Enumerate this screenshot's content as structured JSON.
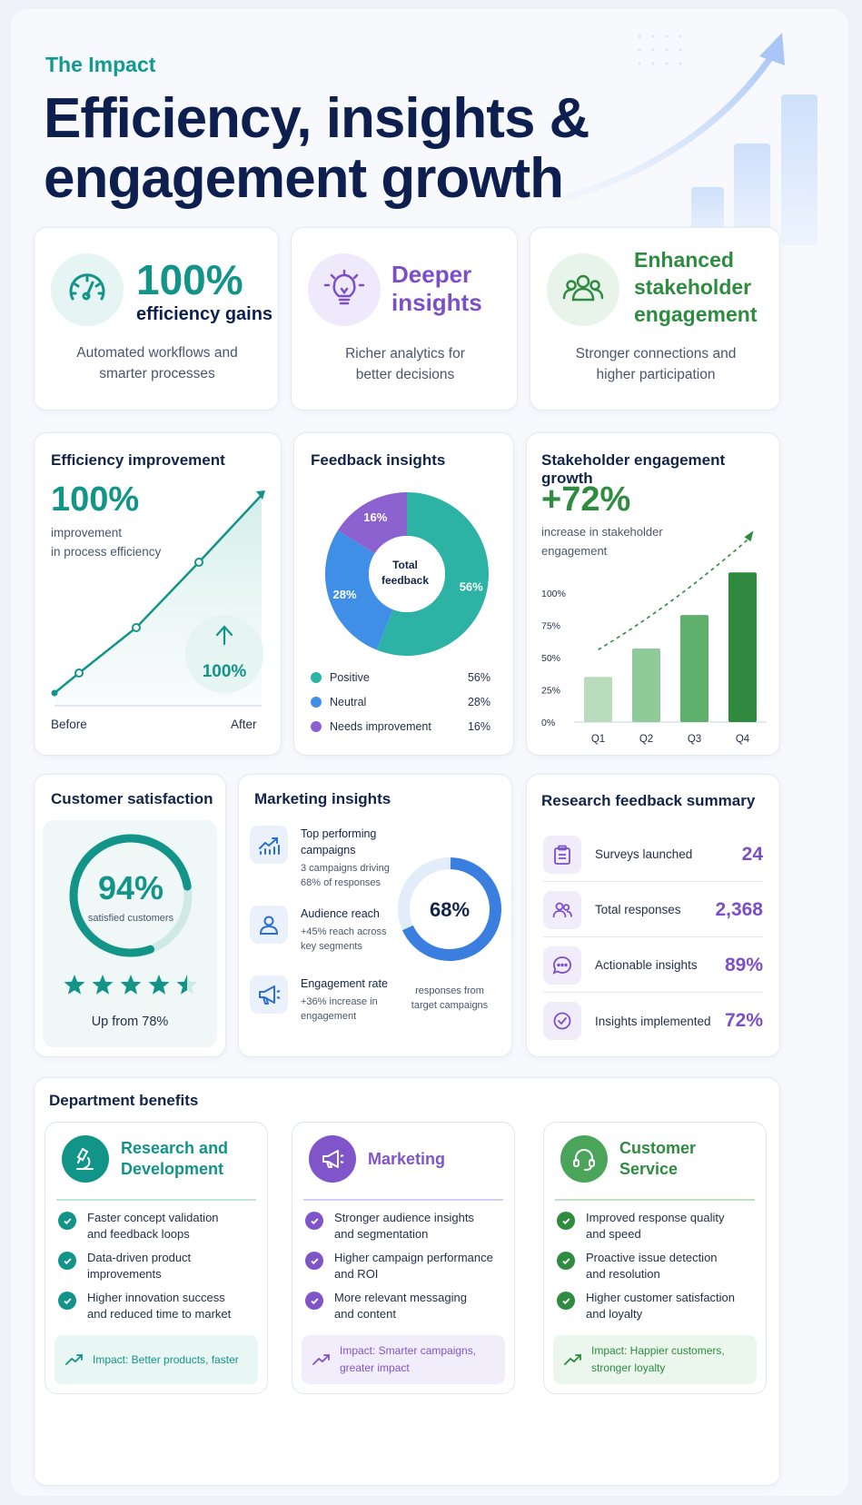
{
  "header": {
    "eyebrow": "The Impact",
    "title_line1": "Efficiency, insights &",
    "title_line2": "engagement growth"
  },
  "highlights": [
    {
      "icon": "speedometer-icon",
      "value": "100%",
      "title": "efficiency gains",
      "desc_line1": "Automated workflows and",
      "desc_line2": "smarter processes"
    },
    {
      "icon": "lightbulb-icon",
      "title_line1": "Deeper",
      "title_line2": "insights",
      "desc_line1": "Richer analytics for",
      "desc_line2": "better decisions"
    },
    {
      "icon": "people-icon",
      "title_line1": "Enhanced",
      "title_line2": "stakeholder",
      "title_line3": "engagement",
      "desc_line1": "Stronger connections and",
      "desc_line2": "higher participation"
    }
  ],
  "efficiency": {
    "title": "Efficiency improvement",
    "value": "100%",
    "desc_line1": "improvement",
    "desc_line2": "in process efficiency",
    "badge": "100%",
    "x_start": "Before",
    "x_end": "After"
  },
  "feedback": {
    "title": "Feedback insights",
    "center_line1": "Total",
    "center_line2": "feedback",
    "segments": [
      {
        "label": "Positive",
        "value": 56,
        "display": "56%",
        "color": "#2db3a6"
      },
      {
        "label": "Neutral",
        "value": 28,
        "display": "28%",
        "color": "#3f8fe6"
      },
      {
        "label": "Needs improvement",
        "value": 16,
        "display": "16%",
        "color": "#8c62d0"
      }
    ]
  },
  "engagement": {
    "title": "Stakeholder engagement growth",
    "value": "+72%",
    "desc_line1": "increase in stakeholder",
    "desc_line2": "engagement",
    "y_ticks": [
      "100%",
      "75%",
      "50%",
      "25%",
      "0%"
    ],
    "categories": [
      "Q1",
      "Q2",
      "Q3",
      "Q4"
    ],
    "values": [
      35,
      57,
      83,
      116
    ],
    "colors": [
      "#b9dcbd",
      "#8fcb98",
      "#5fb06c",
      "#2f8a3f"
    ]
  },
  "satisfaction": {
    "title": "Customer satisfaction",
    "value": "94%",
    "label": "satisfied customers",
    "rating": 4.5,
    "note": "Up from 78%"
  },
  "marketing": {
    "title": "Marketing insights",
    "items": [
      {
        "icon": "trending-chart-icon",
        "title_line1": "Top performing",
        "title_line2": "campaigns",
        "desc_line1": "3 campaigns driving",
        "desc_line2": "68% of responses"
      },
      {
        "icon": "user-icon",
        "title_line1": "Audience reach",
        "desc_line1": "+45% reach across",
        "desc_line2": "key segments"
      },
      {
        "icon": "megaphone-icon",
        "title_line1": "Engagement rate",
        "desc_line1": "+36% increase in",
        "desc_line2": "engagement"
      }
    ],
    "donut_value": "68%",
    "donut_fraction": 0.68,
    "donut_caption_line1": "responses from",
    "donut_caption_line2": "target campaigns"
  },
  "research": {
    "title": "Research feedback summary",
    "rows": [
      {
        "icon": "clipboard-icon",
        "label": "Surveys launched",
        "value": "24"
      },
      {
        "icon": "users-icon",
        "label": "Total responses",
        "value": "2,368"
      },
      {
        "icon": "chat-icon",
        "label": "Actionable insights",
        "value": "89%"
      },
      {
        "icon": "check-circle-icon",
        "label": "Insights implemented",
        "value": "72%"
      }
    ]
  },
  "departments": {
    "title": "Department benefits",
    "items": [
      {
        "icon": "microscope-icon",
        "title_line1": "Research and",
        "title_line2": "Development",
        "color": "#139488",
        "bullets": [
          [
            "Faster concept validation",
            "and feedback loops"
          ],
          [
            "Data-driven product",
            "improvements"
          ],
          [
            "Higher innovation success",
            "and reduced time to market"
          ]
        ],
        "impact_line1": "Impact: Better products, faster",
        "impact_line2": ""
      },
      {
        "icon": "megaphone-icon",
        "title_line1": "Marketing",
        "title_line2": "",
        "color": "#8055c9",
        "bullets": [
          [
            "Stronger audience insights",
            "and segmentation"
          ],
          [
            "Higher campaign performance",
            "and ROI"
          ],
          [
            "More relevant messaging",
            "and content"
          ]
        ],
        "impact_line1": "Impact: Smarter campaigns,",
        "impact_line2": "greater impact"
      },
      {
        "icon": "headset-icon",
        "title_line1": "Customer",
        "title_line2": "Service",
        "color": "#2e8b40",
        "bullets": [
          [
            "Improved response quality",
            "and speed"
          ],
          [
            "Proactive issue detection",
            "and resolution"
          ],
          [
            "Higher customer satisfaction",
            "and loyalty"
          ]
        ],
        "impact_line1": "Impact: Happier customers,",
        "impact_line2": "stronger loyalty"
      }
    ]
  }
}
